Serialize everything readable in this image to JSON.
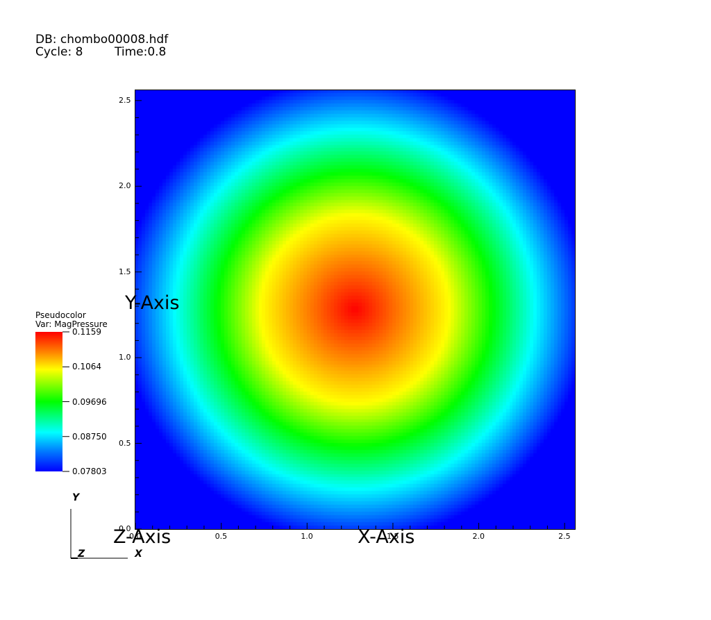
{
  "header": {
    "db": "DB: chombo00008.hdf",
    "cycle": "Cycle: 8",
    "time": "Time:0.8"
  },
  "chart_data": {
    "type": "heatmap",
    "title": "",
    "xlabel": "X-Axis",
    "ylabel": "Y-Axis",
    "zlabel": "Z-Axis",
    "xlim": [
      0.0,
      2.56
    ],
    "ylim": [
      0.0,
      2.56
    ],
    "x_ticks": [
      "0.0",
      "0.5",
      "1.0",
      "1.5",
      "2.0",
      "2.5"
    ],
    "y_ticks": [
      "0.0",
      "0.5",
      "1.0",
      "1.5",
      "2.0",
      "2.5"
    ],
    "field": {
      "variable": "MagPressure",
      "center": [
        1.28,
        1.28
      ],
      "profile": [
        {
          "r": 0.0,
          "value": 0.1159
        },
        {
          "r": 0.55,
          "value": 0.1064
        },
        {
          "r": 0.8,
          "value": 0.09696
        },
        {
          "r": 1.05,
          "value": 0.0875
        },
        {
          "r": 1.35,
          "value": 0.07803
        }
      ]
    },
    "colorbar": {
      "title": "Pseudocolor",
      "var_label": "Var: MagPressure",
      "max": 0.1159,
      "min": 0.07803,
      "tick_labels": [
        "0.1159",
        "0.1064",
        "0.09696",
        "0.08750",
        "0.07803"
      ],
      "tick_values": [
        0.1159,
        0.1064,
        0.09696,
        0.0875,
        0.07803
      ],
      "colors": [
        "#ff0000",
        "#ffff00",
        "#00ff00",
        "#00ffff",
        "#0000ff"
      ]
    },
    "triad": {
      "x": "X",
      "y": "Y",
      "z": "Z"
    }
  }
}
